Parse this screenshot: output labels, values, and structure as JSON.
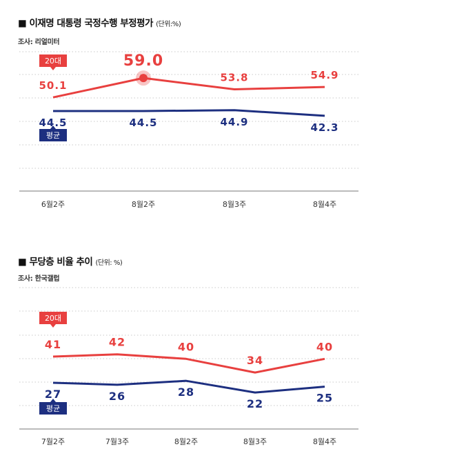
{
  "chart_data": [
    {
      "type": "line",
      "title": "■ 이재명 대통령 국정수행 부정평가",
      "unit": "(단위:%)",
      "source": "조사: 리얼미터",
      "categories": [
        "6월2주",
        "8월2주",
        "8월3주",
        "8월4주"
      ],
      "series": [
        {
          "name": "20대",
          "color": "#e8403f",
          "values": [
            50.1,
            59.0,
            53.8,
            54.9
          ],
          "labels": [
            "50.1",
            "59.0",
            "53.8",
            "54.9"
          ],
          "highlight_index": 1
        },
        {
          "name": "평균",
          "color": "#1d2f80",
          "values": [
            44.5,
            44.5,
            44.9,
            42.3
          ],
          "labels": [
            "44.5",
            "44.5",
            "44.9",
            "42.3"
          ]
        }
      ],
      "grid": true,
      "legend": "inline-left"
    },
    {
      "type": "line",
      "title": "■ 무당층 비율 추이",
      "unit": "(단위: %)",
      "source": "조사: 한국갤럽",
      "categories": [
        "7월2주",
        "7월3주",
        "8월2주",
        "8월3주",
        "8월4주"
      ],
      "series": [
        {
          "name": "20대",
          "color": "#e8403f",
          "values": [
            41,
            42,
            40,
            34,
            40
          ],
          "labels": [
            "41",
            "42",
            "40",
            "34",
            "40"
          ]
        },
        {
          "name": "평균",
          "color": "#1d2f80",
          "values": [
            27,
            26,
            28,
            22,
            25
          ],
          "labels": [
            "27",
            "26",
            "28",
            "22",
            "25"
          ]
        }
      ],
      "grid": true,
      "legend": "inline-left"
    }
  ]
}
